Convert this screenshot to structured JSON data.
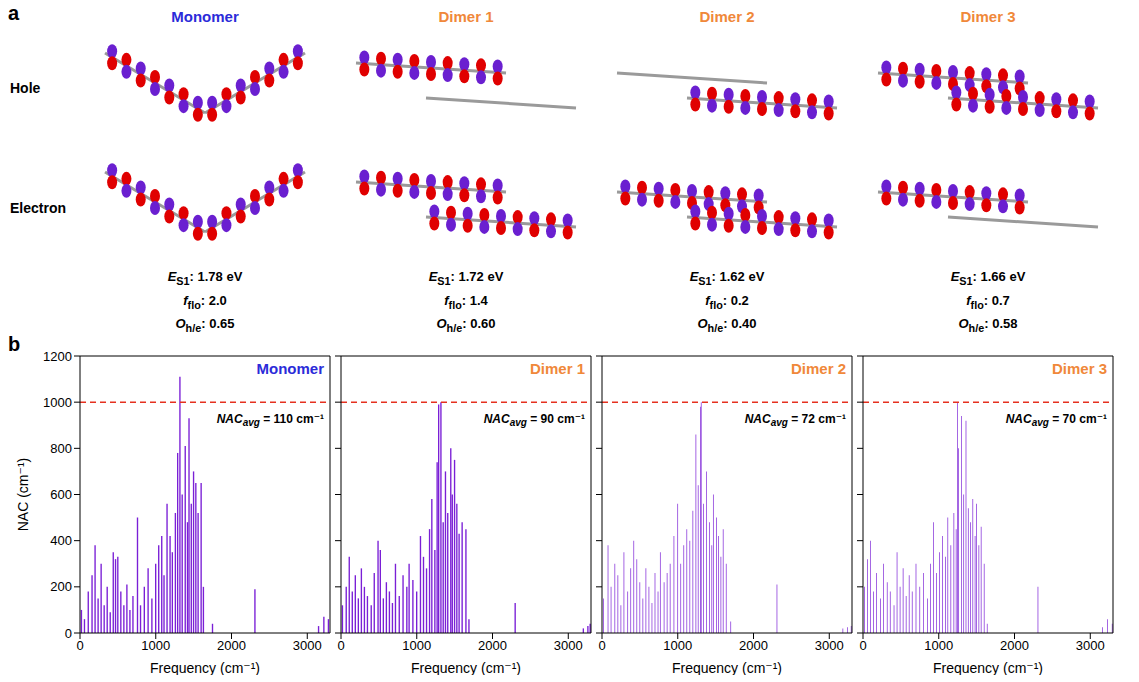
{
  "panel_letters": [
    "a",
    "b"
  ],
  "panel_a": {
    "rows": [
      "Hole",
      "Electron"
    ],
    "properties": [
      {
        "symbol": "E",
        "subscript": "S1",
        "suffix": ":",
        "unit": "eV"
      },
      {
        "symbol": "f",
        "subscript": "flo",
        "suffix": ":"
      },
      {
        "symbol": "O",
        "subscript": "h/e",
        "suffix": ":"
      }
    ],
    "columns": [
      {
        "name": "Monomer",
        "values": [
          "1.78",
          "2.0",
          "0.65"
        ]
      },
      {
        "name": "Dimer 1",
        "values": [
          "1.72",
          "1.4",
          "0.60"
        ]
      },
      {
        "name": "Dimer 2",
        "values": [
          "1.62",
          "0.2",
          "0.40"
        ]
      },
      {
        "name": "Dimer 3",
        "values": [
          "1.66",
          "0.7",
          "0.58"
        ]
      }
    ]
  },
  "chart_data": [
    {
      "type": "bar",
      "title": "Monomer",
      "xlabel": "Frequency (cm⁻¹)",
      "ylabel": "NAC (cm⁻¹)",
      "color": "#7a1fd6",
      "xlim": [
        0,
        3300
      ],
      "xticks": [
        0,
        1000,
        2000,
        3000
      ],
      "ylim": [
        0,
        1200
      ],
      "yticks": [
        0,
        200,
        400,
        600,
        800,
        1000,
        1200
      ],
      "tick_labels": true,
      "reference_line": {
        "value": 1000,
        "color": "#e5301f",
        "line_style": "dashed"
      },
      "annotation": {
        "label": "NAC",
        "subscript": "avg",
        "relation": "=",
        "value": 110,
        "unit": "cm⁻¹"
      },
      "x": [
        20,
        60,
        110,
        160,
        200,
        240,
        280,
        320,
        360,
        400,
        440,
        470,
        500,
        540,
        580,
        620,
        660,
        700,
        760,
        800,
        850,
        900,
        950,
        1000,
        1040,
        1080,
        1110,
        1150,
        1190,
        1220,
        1260,
        1290,
        1320,
        1350,
        1390,
        1420,
        1440,
        1470,
        1500,
        1530,
        1560,
        1600,
        1630,
        1750,
        2310,
        3150,
        3220,
        3280
      ],
      "values": [
        100,
        60,
        180,
        250,
        380,
        150,
        300,
        120,
        200,
        90,
        350,
        320,
        330,
        180,
        120,
        210,
        100,
        160,
        500,
        120,
        200,
        280,
        150,
        300,
        380,
        420,
        250,
        560,
        420,
        350,
        520,
        780,
        1110,
        600,
        810,
        480,
        930,
        560,
        700,
        650,
        520,
        650,
        200,
        40,
        190,
        30,
        70,
        60
      ]
    },
    {
      "type": "bar",
      "title": "Dimer 1",
      "xlabel": "Frequency (cm⁻¹)",
      "color": "#7a1fd6",
      "xlim": [
        0,
        3300
      ],
      "xticks": [
        0,
        1000,
        2000,
        3000
      ],
      "ylim": [
        0,
        1200
      ],
      "yticks": [
        0,
        200,
        400,
        600,
        800,
        1000,
        1200
      ],
      "tick_labels": "x",
      "reference_line": {
        "value": 1000,
        "color": "#e5301f",
        "line_style": "dashed"
      },
      "annotation": {
        "label": "NAC",
        "subscript": "avg",
        "relation": "=",
        "value": 90,
        "unit": "cm⁻¹"
      },
      "x": [
        20,
        70,
        110,
        150,
        190,
        230,
        270,
        310,
        350,
        400,
        440,
        490,
        520,
        560,
        600,
        640,
        680,
        720,
        770,
        820,
        870,
        900,
        950,
        1000,
        1050,
        1090,
        1130,
        1170,
        1200,
        1240,
        1270,
        1290,
        1320,
        1350,
        1380,
        1410,
        1450,
        1470,
        1500,
        1530,
        1560,
        1600,
        1650,
        1690,
        2300,
        3200,
        3260,
        3290
      ],
      "values": [
        120,
        200,
        330,
        180,
        250,
        150,
        280,
        200,
        160,
        120,
        260,
        400,
        360,
        150,
        220,
        180,
        130,
        300,
        160,
        250,
        200,
        300,
        230,
        180,
        420,
        330,
        280,
        450,
        580,
        360,
        740,
        990,
        1000,
        480,
        700,
        520,
        800,
        600,
        750,
        560,
        430,
        480,
        450,
        60,
        130,
        20,
        30,
        40
      ]
    },
    {
      "type": "bar",
      "title": "Dimer 2",
      "xlabel": "Frequency (cm⁻¹)",
      "color": "#7a1fd6",
      "xlim": [
        0,
        3300
      ],
      "xticks": [
        0,
        1000,
        2000,
        3000
      ],
      "ylim": [
        0,
        1200
      ],
      "yticks": [
        0,
        200,
        400,
        600,
        800,
        1000,
        1200
      ],
      "tick_labels": "x",
      "reference_line": {
        "value": 1000,
        "color": "#e5301f",
        "line_style": "dashed"
      },
      "annotation": {
        "label": "NAC",
        "subscript": "avg",
        "relation": "=",
        "value": 72,
        "unit": "cm⁻¹"
      },
      "x": [
        20,
        80,
        120,
        170,
        210,
        250,
        290,
        340,
        380,
        420,
        460,
        500,
        540,
        580,
        620,
        660,
        700,
        740,
        770,
        820,
        860,
        900,
        950,
        1000,
        1040,
        1080,
        1120,
        1160,
        1200,
        1240,
        1270,
        1300,
        1310,
        1340,
        1380,
        1420,
        1450,
        1470,
        1510,
        1540,
        1570,
        1600,
        1640,
        1700,
        2310,
        3180,
        3240,
        3290
      ],
      "values": [
        150,
        380,
        200,
        300,
        250,
        120,
        350,
        180,
        280,
        400,
        320,
        220,
        150,
        280,
        200,
        130,
        260,
        180,
        350,
        220,
        260,
        300,
        420,
        560,
        300,
        380,
        450,
        400,
        530,
        860,
        640,
        980,
        1000,
        560,
        700,
        480,
        380,
        600,
        500,
        420,
        330,
        450,
        300,
        50,
        210,
        20,
        25,
        30
      ]
    },
    {
      "type": "bar",
      "title": "Dimer 3",
      "xlabel": "Frequency (cm⁻¹)",
      "color": "#7a1fd6",
      "xlim": [
        0,
        3300
      ],
      "xticks": [
        0,
        1000,
        2000,
        3000
      ],
      "ylim": [
        0,
        1200
      ],
      "yticks": [
        0,
        200,
        400,
        600,
        800,
        1000,
        1200
      ],
      "tick_labels": "x",
      "reference_line": {
        "value": 1000,
        "color": "#e5301f",
        "line_style": "dashed"
      },
      "annotation": {
        "label": "NAC",
        "subscript": "avg",
        "relation": "=",
        "value": 70,
        "unit": "cm⁻¹"
      },
      "x": [
        20,
        60,
        100,
        140,
        180,
        230,
        270,
        320,
        360,
        410,
        450,
        490,
        530,
        570,
        610,
        650,
        700,
        750,
        800,
        850,
        890,
        930,
        970,
        1010,
        1050,
        1090,
        1120,
        1160,
        1200,
        1230,
        1250,
        1260,
        1300,
        1330,
        1360,
        1390,
        1420,
        1450,
        1480,
        1500,
        1530,
        1560,
        1600,
        1640,
        2310,
        3160,
        3230,
        3290
      ],
      "values": [
        200,
        320,
        400,
        180,
        260,
        150,
        300,
        220,
        180,
        120,
        350,
        200,
        280,
        160,
        250,
        180,
        300,
        200,
        260,
        150,
        300,
        480,
        260,
        350,
        420,
        330,
        500,
        380,
        520,
        450,
        1000,
        800,
        940,
        600,
        920,
        540,
        480,
        580,
        420,
        560,
        380,
        460,
        300,
        40,
        200,
        25,
        60,
        40
      ]
    }
  ]
}
